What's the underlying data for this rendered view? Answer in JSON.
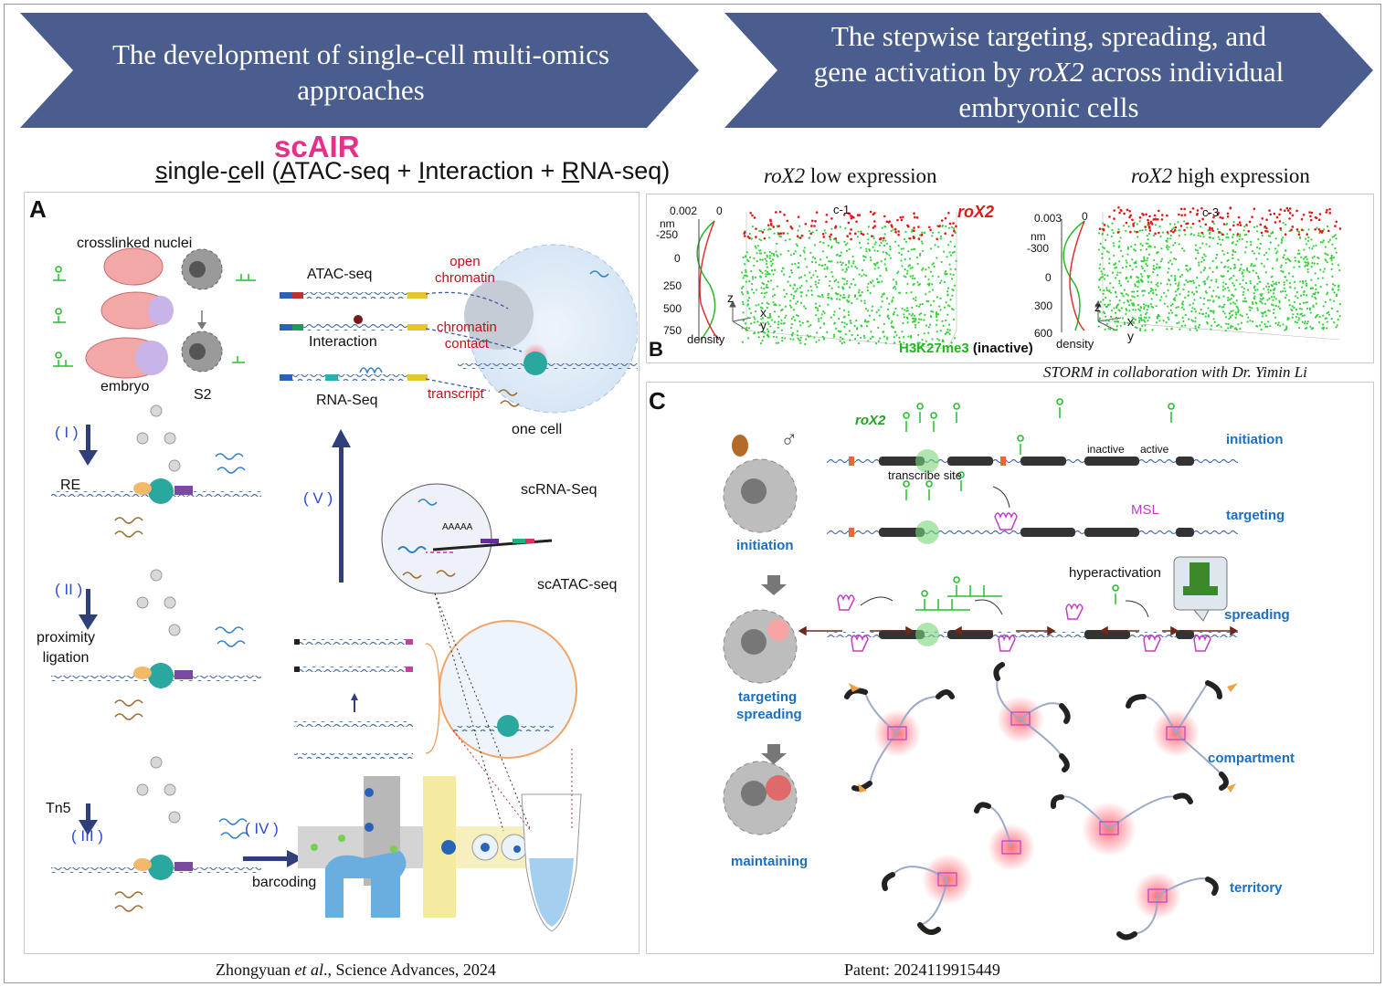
{
  "banners": {
    "left": {
      "line1": "The development of single-cell multi-omics",
      "line2": "approaches"
    },
    "right": {
      "line1": "The stepwise targeting, spreading, and",
      "line2_pre": "gene activation by ",
      "line2_em": "roX2",
      "line2_post": " across individual",
      "line3": "embryonic cells"
    }
  },
  "scair": {
    "acronym": "scAIR",
    "s": "s",
    "ingle": "ingle-",
    "c": "c",
    "ell": "ell (",
    "A": "A",
    "TAC": "TAC-seq + ",
    "I": "I",
    "nteraction": "nteraction + ",
    "R": "R",
    "NA": "NA-seq)"
  },
  "panel_a": {
    "label": "A",
    "crosslinked": "crosslinked nuclei",
    "embryo": "embryo",
    "s2": "S2",
    "step1": "( I )",
    "re": "RE",
    "step2": "( II )",
    "proximity1": "proximity",
    "proximity2": "ligation",
    "tn5": "Tn5",
    "step3": "( III )",
    "step4": "( IV )",
    "barcoding": "barcoding",
    "step5": "( V )",
    "atac": "ATAC-seq",
    "interaction": "Interaction",
    "rnaseq": "RNA-Seq",
    "open1": "open",
    "open2": "chromatin",
    "contact1": "chromatin",
    "contact2": "contact",
    "transcript": "transcript",
    "onecell": "one cell",
    "scrna": "scRNA-Seq",
    "polya": "AAAAA",
    "scatac": "scATAC-seq"
  },
  "panel_b": {
    "label": "B",
    "low_em": "roX2",
    "low_rest": " low expression",
    "high_em": "roX2",
    "high_rest": " high expression",
    "left_plot": {
      "scale": "0.002",
      "zero": "0",
      "nm": "nm",
      "ticks": [
        "-250",
        "0",
        "250",
        "500",
        "750"
      ],
      "density": "density",
      "cell": "c-1",
      "rox2": "roX2",
      "h3": "H3K27me3",
      "inactive": "(inactive)"
    },
    "right_plot": {
      "scale": "0.003",
      "zero": "0",
      "nm": "nm",
      "ticks": [
        "-300",
        "0",
        "300",
        "600"
      ],
      "density": "density",
      "cell": "c-3"
    },
    "axes": {
      "z": "z",
      "x": "x",
      "y": "y"
    },
    "storm": "STORM in collaboration with Dr. Yimin Li"
  },
  "panel_c": {
    "label": "C",
    "male": "♂",
    "rox2": "roX2",
    "inactive": "inactive",
    "active": "active",
    "transcribe": "transcribe site",
    "msl": "MSL",
    "hyper": "hyperactivation",
    "initiation_left": "initiation",
    "targeting_left": "targeting",
    "spreading_left": "spreading",
    "maintaining": "maintaining",
    "stages": {
      "initiation": "initiation",
      "targeting": "targeting",
      "spreading": "spreading",
      "compartment": "compartment",
      "territory": "territory"
    }
  },
  "footer": {
    "left_pre": "Zhongyuan ",
    "left_em": "et al",
    "left_post": "., Science Advances, 2024",
    "right": "Patent: 2024119915449"
  },
  "colors": {
    "banner": "#4a5d8f",
    "accent_blue": "#1a6fc0",
    "accent_red": "#c0101a",
    "scair": "#e8308a",
    "green": "#22c02a",
    "magenta": "#c23cc8"
  }
}
